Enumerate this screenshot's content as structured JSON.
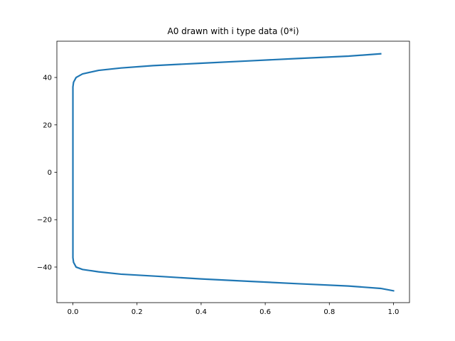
{
  "chart_data": {
    "type": "line",
    "title": "A0 drawn with i type data (0*i)",
    "x": [
      1.0,
      0.96,
      0.86,
      0.7,
      0.55,
      0.4,
      0.28,
      0.15,
      0.08,
      0.03,
      0.01,
      0.002,
      0,
      0,
      0.002,
      0.01,
      0.03,
      0.08,
      0.15,
      0.25,
      0.4,
      0.55,
      0.7,
      0.86,
      0.96
    ],
    "values": [
      -50,
      -49,
      -48,
      -47,
      -46,
      -45,
      -44,
      -43,
      -42,
      -41,
      -40,
      -38,
      -36,
      36,
      38,
      40,
      41.5,
      43,
      44,
      45,
      46,
      47,
      48,
      49,
      50
    ],
    "color": "#1f77b4",
    "xlim": [
      -0.05,
      1.05
    ],
    "ylim": [
      -55,
      55.3
    ],
    "xticks": [
      {
        "value": 0,
        "label": "0.0"
      },
      {
        "value": 0.2,
        "label": "0.2"
      },
      {
        "value": 0.4,
        "label": "0.4"
      },
      {
        "value": 0.6,
        "label": "0.6"
      },
      {
        "value": 0.8,
        "label": "0.8"
      },
      {
        "value": 1,
        "label": "1.0"
      }
    ],
    "yticks": [
      {
        "value": -40,
        "label": "−40"
      },
      {
        "value": -20,
        "label": "−20"
      },
      0,
      20,
      40
    ],
    "grid": false
  }
}
